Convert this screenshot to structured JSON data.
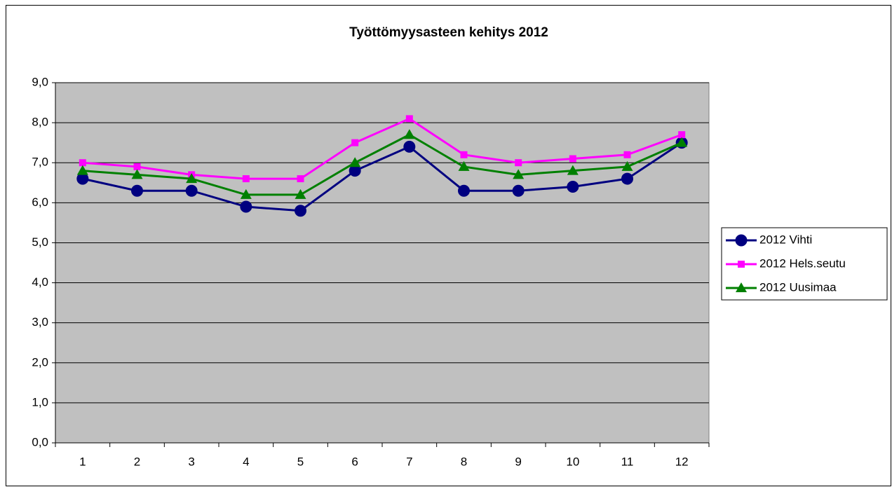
{
  "chart_data": {
    "type": "line",
    "title": "Työttömyysasteen kehitys 2012",
    "categories": [
      "1",
      "2",
      "3",
      "4",
      "5",
      "6",
      "7",
      "8",
      "9",
      "10",
      "11",
      "12"
    ],
    "series": [
      {
        "name": "2012 Vihti",
        "color": "#000080",
        "marker": "circle",
        "values": [
          6.6,
          6.3,
          6.3,
          5.9,
          5.8,
          6.8,
          7.4,
          6.3,
          6.3,
          6.4,
          6.6,
          7.5
        ]
      },
      {
        "name": "2012 Hels.seutu",
        "color": "#ff00ff",
        "marker": "square",
        "values": [
          7.0,
          6.9,
          6.7,
          6.6,
          6.6,
          7.5,
          8.1,
          7.2,
          7.0,
          7.1,
          7.2,
          7.7
        ]
      },
      {
        "name": "2012 Uusimaa",
        "color": "#008000",
        "marker": "triangle",
        "values": [
          6.8,
          6.7,
          6.6,
          6.2,
          6.2,
          7.0,
          7.7,
          6.9,
          6.7,
          6.8,
          6.9,
          7.5
        ]
      }
    ],
    "ylim": [
      0,
      9
    ],
    "yticks": [
      {
        "value": 0,
        "label": "0,0"
      },
      {
        "value": 1,
        "label": "1,0"
      },
      {
        "value": 2,
        "label": "2,0"
      },
      {
        "value": 3,
        "label": "3,0"
      },
      {
        "value": 4,
        "label": "4,0"
      },
      {
        "value": 5,
        "label": "5,0"
      },
      {
        "value": 6,
        "label": "6,0"
      },
      {
        "value": 7,
        "label": "7,0"
      },
      {
        "value": 8,
        "label": "8,0"
      },
      {
        "value": 9,
        "label": "9,0"
      }
    ],
    "grid": true,
    "plot_background": "#c0c0c0",
    "legend": "right"
  }
}
